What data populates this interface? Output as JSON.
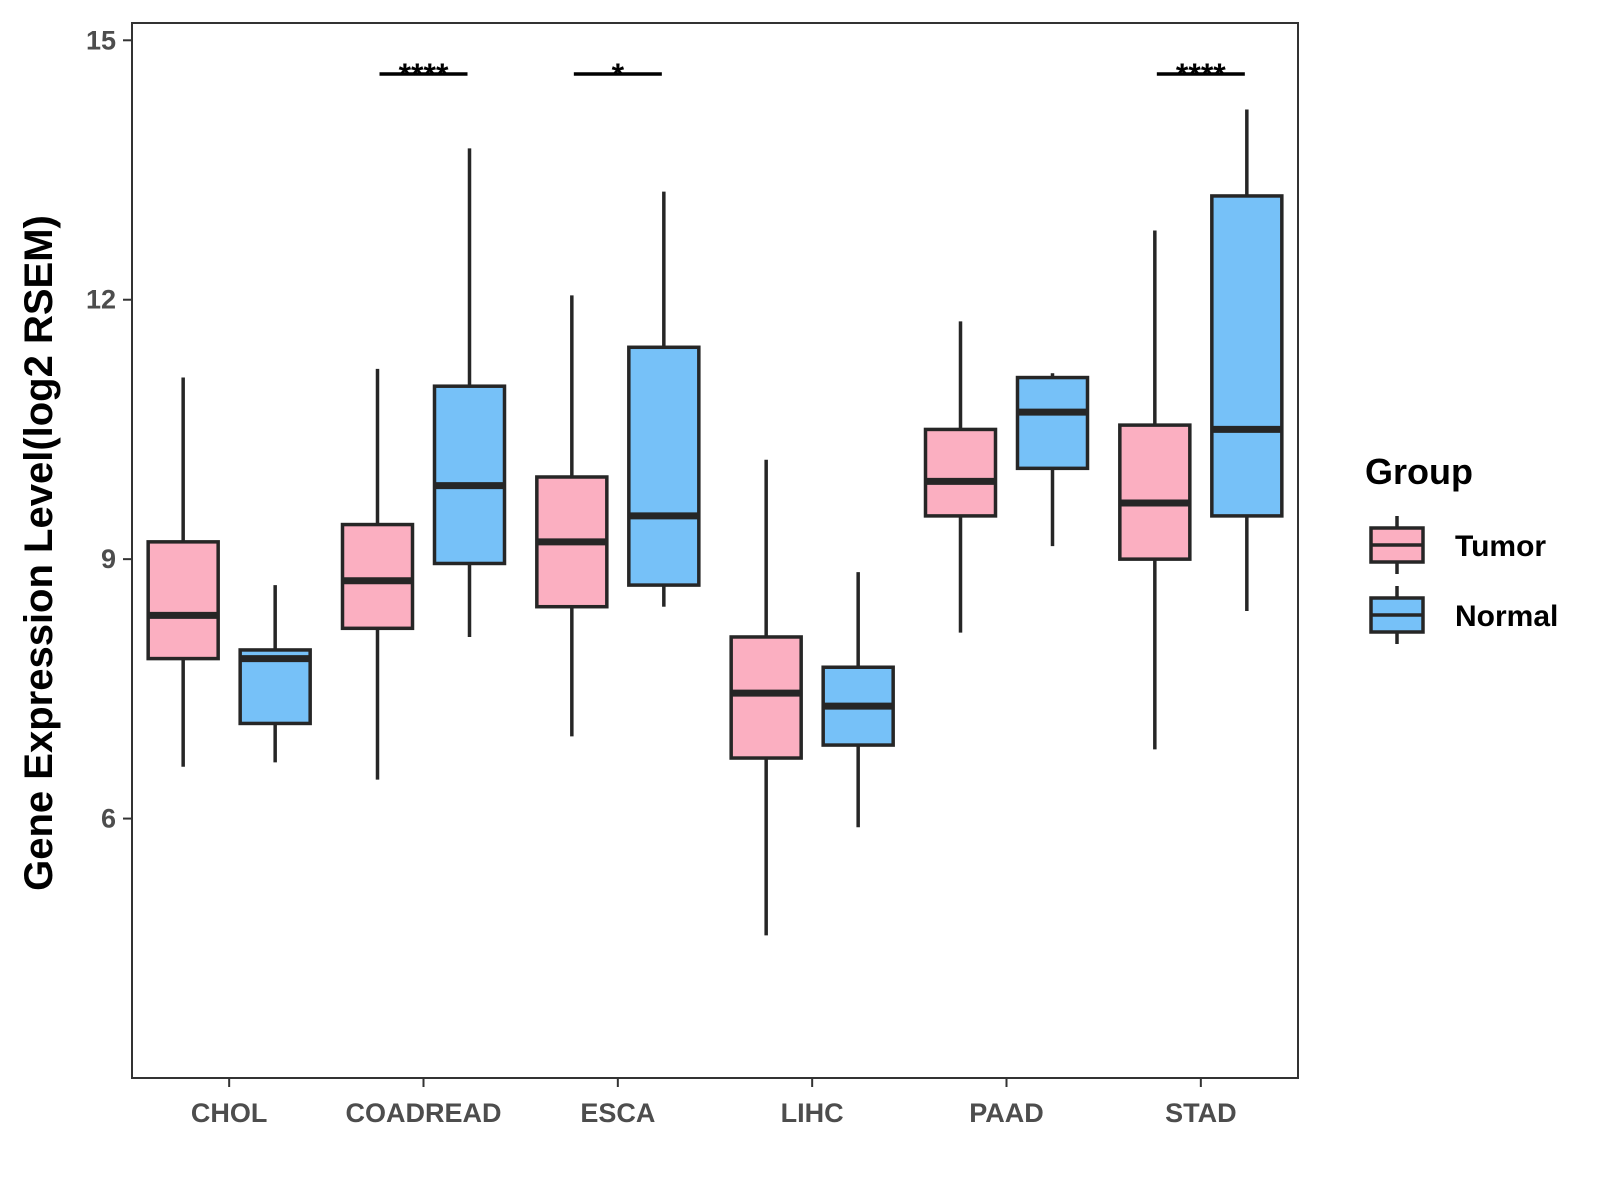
{
  "chart_data": {
    "type": "boxplot",
    "ylabel": "Gene Expression Level(log2 RSEM)",
    "xlabel": "",
    "ylim": [
      3.0,
      15.2
    ],
    "yticks": [
      6,
      9,
      12,
      15
    ],
    "categories": [
      "CHOL",
      "COADREAD",
      "ESCA",
      "LIHC",
      "PAAD",
      "STAD"
    ],
    "legend": {
      "title": "Group",
      "position": "right",
      "items": [
        {
          "label": "Tumor",
          "color": "#FBAFC1"
        },
        {
          "label": "Normal",
          "color": "#76C1F8"
        }
      ]
    },
    "series": [
      {
        "name": "Tumor",
        "color": "#FBAFC1",
        "boxes": [
          {
            "category": "CHOL",
            "min": 6.6,
            "q1": 7.85,
            "median": 8.35,
            "q3": 9.2,
            "max": 11.1
          },
          {
            "category": "COADREAD",
            "min": 6.45,
            "q1": 8.2,
            "median": 8.75,
            "q3": 9.4,
            "max": 11.2
          },
          {
            "category": "ESCA",
            "min": 6.95,
            "q1": 8.45,
            "median": 9.2,
            "q3": 9.95,
            "max": 12.05
          },
          {
            "category": "LIHC",
            "min": 4.65,
            "q1": 6.7,
            "median": 7.45,
            "q3": 8.1,
            "max": 10.15
          },
          {
            "category": "PAAD",
            "min": 8.15,
            "q1": 9.5,
            "median": 9.9,
            "q3": 10.5,
            "max": 11.75
          },
          {
            "category": "STAD",
            "min": 6.8,
            "q1": 9.0,
            "median": 9.65,
            "q3": 10.55,
            "max": 12.8
          }
        ]
      },
      {
        "name": "Normal",
        "color": "#76C1F8",
        "boxes": [
          {
            "category": "CHOL",
            "min": 6.65,
            "q1": 7.1,
            "median": 7.85,
            "q3": 7.95,
            "max": 8.7
          },
          {
            "category": "COADREAD",
            "min": 8.1,
            "q1": 8.95,
            "median": 9.85,
            "q3": 11.0,
            "max": 13.75
          },
          {
            "category": "ESCA",
            "min": 8.45,
            "q1": 8.7,
            "median": 9.5,
            "q3": 11.45,
            "max": 13.25
          },
          {
            "category": "LIHC",
            "min": 5.9,
            "q1": 6.85,
            "median": 7.3,
            "q3": 7.75,
            "max": 8.85
          },
          {
            "category": "PAAD",
            "min": 9.15,
            "q1": 10.05,
            "median": 10.7,
            "q3": 11.1,
            "max": 11.15
          },
          {
            "category": "STAD",
            "min": 8.4,
            "q1": 9.5,
            "median": 10.5,
            "q3": 13.2,
            "max": 14.2
          }
        ]
      }
    ],
    "annotations": [
      {
        "category": "COADREAD",
        "label": "****"
      },
      {
        "category": "ESCA",
        "label": "*"
      },
      {
        "category": "STAD",
        "label": "****"
      }
    ]
  }
}
